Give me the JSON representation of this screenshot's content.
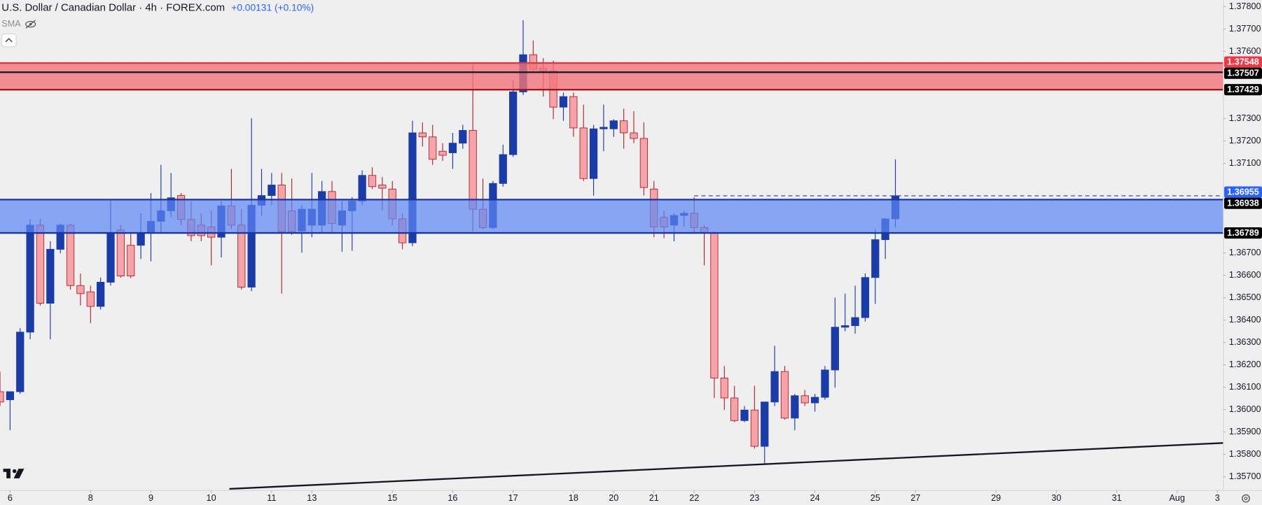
{
  "chart_data": {
    "type": "candlestick",
    "title": "U.S. Dollar / Canadian Dollar · 4h · FOREX.com",
    "change": "+0.00131 (+0.10%)",
    "indicator": "SMA",
    "open": [
      1.3608,
      1.36044,
      1.3608,
      1.36346,
      1.36824,
      1.36475,
      1.36716,
      1.36824,
      1.36554,
      1.36526,
      1.36461,
      1.36569,
      1.36802,
      1.36734,
      1.36734,
      1.36788,
      1.36841,
      1.36888,
      1.36956,
      1.36849,
      1.36824,
      1.36816,
      1.3677,
      1.3691,
      1.36824,
      1.36547,
      1.36913,
      1.36956,
      1.37003,
      1.36888,
      1.36798,
      1.36824,
      1.36824,
      1.36974,
      1.36824,
      1.36888,
      1.36931,
      1.37046,
      1.37003,
      1.36985,
      1.36852,
      1.36745,
      1.37236,
      1.37218,
      1.37154,
      1.37147,
      1.3719,
      1.37247,
      1.36895,
      1.36813,
      1.3701,
      1.37139,
      1.37419,
      1.37585,
      1.37524,
      1.37513,
      1.37351,
      1.37398,
      1.37258,
      1.37032,
      1.37254,
      1.37254,
      1.3729,
      1.37236,
      1.37211,
      1.36985,
      1.36859,
      1.36824,
      1.36867,
      1.36877,
      1.36813,
      1.36788,
      1.36141,
      1.36052,
      1.35951,
      1.35998,
      1.35836,
      1.36034,
      1.3617,
      1.35962,
      1.36062,
      1.3603,
      1.36055,
      1.36177,
      1.36368,
      1.36375,
      1.36411,
      1.3659,
      1.36759,
      1.36852
    ],
    "high": [
      1.3617,
      1.3608,
      1.36364,
      1.36852,
      1.36852,
      1.36752,
      1.36831,
      1.36831,
      1.36608,
      1.36554,
      1.3659,
      1.36938,
      1.36824,
      1.36788,
      1.36877,
      1.36967,
      1.37093,
      1.37057,
      1.36967,
      1.36931,
      1.36877,
      1.36888,
      1.36931,
      1.37075,
      1.36895,
      1.37301,
      1.37075,
      1.37057,
      1.37057,
      1.37032,
      1.36913,
      1.37057,
      1.37021,
      1.37021,
      1.36931,
      1.36949,
      1.37068,
      1.37082,
      1.37039,
      1.37021,
      1.36877,
      1.3729,
      1.37283,
      1.37272,
      1.3719,
      1.37236,
      1.37272,
      1.37549,
      1.37032,
      1.37021,
      1.37183,
      1.3747,
      1.37739,
      1.37649,
      1.3757,
      1.37559,
      1.37416,
      1.37416,
      1.37362,
      1.37272,
      1.37362,
      1.37297,
      1.37344,
      1.37333,
      1.37283,
      1.37021,
      1.36888,
      1.36877,
      1.36888,
      1.36949,
      1.36824,
      1.36795,
      1.36195,
      1.36106,
      1.36016,
      1.36106,
      1.36034,
      1.36285,
      1.36195,
      1.3607,
      1.36088,
      1.3607,
      1.36195,
      1.365,
      1.36518,
      1.36554,
      1.36608,
      1.36806,
      1.36852,
      1.37118
    ],
    "low": [
      1.36016,
      1.35908,
      1.3607,
      1.36314,
      1.36465,
      1.36314,
      1.36698,
      1.36536,
      1.36465,
      1.36386,
      1.36447,
      1.36554,
      1.3659,
      1.36587,
      1.36673,
      1.36662,
      1.36788,
      1.36859,
      1.36824,
      1.36752,
      1.36752,
      1.36644,
      1.3668,
      1.36806,
      1.36536,
      1.36529,
      1.36867,
      1.36913,
      1.36518,
      1.3678,
      1.36701,
      1.3677,
      1.36788,
      1.36788,
      1.36705,
      1.36709,
      1.36913,
      1.36985,
      1.36888,
      1.36824,
      1.36716,
      1.3673,
      1.37175,
      1.37093,
      1.37111,
      1.37075,
      1.37165,
      1.36795,
      1.36806,
      1.36806,
      1.36996,
      1.37129,
      1.37405,
      1.37506,
      1.37398,
      1.37297,
      1.3729,
      1.37218,
      1.37021,
      1.36956,
      1.37154,
      1.37218,
      1.37165,
      1.3719,
      1.36956,
      1.3677,
      1.36766,
      1.36752,
      1.36816,
      1.36788,
      1.36644,
      1.36052,
      1.35998,
      1.35944,
      1.35944,
      1.35826,
      1.35754,
      1.36016,
      1.35955,
      1.35908,
      1.36016,
      1.35991,
      1.36044,
      1.36098,
      1.3635,
      1.36339,
      1.36393,
      1.36472,
      1.36673,
      1.36813
    ],
    "close": [
      1.36034,
      1.3608,
      1.36346,
      1.36824,
      1.36475,
      1.36716,
      1.36824,
      1.36554,
      1.36518,
      1.36461,
      1.36569,
      1.36788,
      1.36597,
      1.36597,
      1.36788,
      1.36841,
      1.36888,
      1.36946,
      1.36849,
      1.36777,
      1.36777,
      1.3677,
      1.3691,
      1.36824,
      1.36547,
      1.36913,
      1.36956,
      1.37003,
      1.36795,
      1.36795,
      1.36895,
      1.36895,
      1.36974,
      1.36831,
      1.36888,
      1.36931,
      1.37046,
      1.36996,
      1.36989,
      1.36852,
      1.36745,
      1.37236,
      1.37218,
      1.37118,
      1.37136,
      1.3719,
      1.37247,
      1.36895,
      1.36813,
      1.3701,
      1.37139,
      1.37419,
      1.37585,
      1.3752,
      1.37513,
      1.37351,
      1.37398,
      1.37258,
      1.37032,
      1.37254,
      1.37261,
      1.3729,
      1.37236,
      1.37211,
      1.36992,
      1.36816,
      1.36816,
      1.36867,
      1.36877,
      1.36813,
      1.36788,
      1.36141,
      1.36052,
      1.35951,
      1.35998,
      1.35836,
      1.36034,
      1.3617,
      1.35962,
      1.36062,
      1.3603,
      1.36055,
      1.36177,
      1.36368,
      1.36375,
      1.36411,
      1.3659,
      1.36759,
      1.36852,
      1.36955
    ],
    "colors": {
      "up": "#1b3ca8",
      "down": "#f5a3a9",
      "down_edge": "#b3252e"
    },
    "xlim": [
      0,
      121.6
    ],
    "xticks": [
      {
        "value": 1,
        "label": "6"
      },
      {
        "value": 9,
        "label": "8"
      },
      {
        "value": 15,
        "label": "9"
      },
      {
        "value": 21,
        "label": "10"
      },
      {
        "value": 27,
        "label": "11"
      },
      {
        "value": 31,
        "label": "13"
      },
      {
        "value": 39,
        "label": "15"
      },
      {
        "value": 45,
        "label": "16"
      },
      {
        "value": 51,
        "label": "17"
      },
      {
        "value": 57,
        "label": "18"
      },
      {
        "value": 61,
        "label": "20"
      },
      {
        "value": 65,
        "label": "21"
      },
      {
        "value": 69,
        "label": "22"
      },
      {
        "value": 75,
        "label": "23"
      },
      {
        "value": 81,
        "label": "24"
      },
      {
        "value": 87,
        "label": "25"
      },
      {
        "value": 91,
        "label": "27"
      },
      {
        "value": 99,
        "label": "29"
      },
      {
        "value": 105,
        "label": "30"
      },
      {
        "value": 111,
        "label": "31"
      },
      {
        "value": 117,
        "label": "Aug"
      },
      {
        "value": 121,
        "label": "3"
      }
    ],
    "ylim": [
      1.35639,
      1.37829
    ],
    "yticks": [
      {
        "value": 1.378,
        "label": "1.37800"
      },
      {
        "value": 1.377,
        "label": "1.37700"
      },
      {
        "value": 1.376,
        "label": "1.37600"
      },
      {
        "value": 1.373,
        "label": "1.37300"
      },
      {
        "value": 1.372,
        "label": "1.37200"
      },
      {
        "value": 1.371,
        "label": "1.37100"
      },
      {
        "value": 1.367,
        "label": "1.36700"
      },
      {
        "value": 1.366,
        "label": "1.36600"
      },
      {
        "value": 1.365,
        "label": "1.36500"
      },
      {
        "value": 1.364,
        "label": "1.36400"
      },
      {
        "value": 1.363,
        "label": "1.36300"
      },
      {
        "value": 1.362,
        "label": "1.36200"
      },
      {
        "value": 1.361,
        "label": "1.36100"
      },
      {
        "value": 1.36,
        "label": "1.36000"
      },
      {
        "value": 1.359,
        "label": "1.35900"
      },
      {
        "value": 1.358,
        "label": "1.35800"
      },
      {
        "value": 1.357,
        "label": "1.35700"
      }
    ],
    "zones": [
      {
        "bounds": [
          1.37429,
          1.37548
        ],
        "color": "#f2737c",
        "opacity": 0.8
      },
      {
        "bounds": [
          1.36789,
          1.36938
        ],
        "color": "#5d86f5",
        "opacity": 0.7
      }
    ],
    "levels": [
      {
        "value": 1.37548,
        "color": "#e8323f",
        "tag_color": "#f23645"
      },
      {
        "value": 1.37507,
        "color": "#131722",
        "tag_color": "#000000"
      },
      {
        "value": 1.37429,
        "color": "#9c1a22",
        "tag_color": "#000000"
      },
      {
        "value": 1.36955,
        "color": "#1b3ca8",
        "tag_color": "#2962ff",
        "dashed": true,
        "x_start": 69
      },
      {
        "value": 1.36938,
        "color": "#1a37a0",
        "tag_color": "#000000"
      },
      {
        "value": 1.36789,
        "color": "#1a37a0",
        "tag_color": "#000000"
      }
    ],
    "trendline": {
      "x": [
        22.8,
        121.6
      ],
      "y": [
        1.35646,
        1.35851
      ],
      "color": "#131722"
    }
  }
}
